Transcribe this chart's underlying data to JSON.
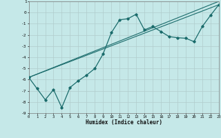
{
  "title": "",
  "xlabel": "Humidex (Indice chaleur)",
  "background_color": "#c5e8e8",
  "grid_color": "#b0cccc",
  "line_color": "#1a6b6b",
  "xlim": [
    0,
    23
  ],
  "ylim": [
    -9,
    1
  ],
  "yticks": [
    1,
    0,
    -1,
    -2,
    -3,
    -4,
    -5,
    -6,
    -7,
    -8,
    -9
  ],
  "xticks": [
    0,
    1,
    2,
    3,
    4,
    5,
    6,
    7,
    8,
    9,
    10,
    11,
    12,
    13,
    14,
    15,
    16,
    17,
    18,
    19,
    20,
    21,
    22,
    23
  ],
  "series1_x": [
    0,
    1,
    2,
    3,
    4,
    5,
    6,
    7,
    8,
    9,
    10,
    11,
    12,
    13,
    14,
    15,
    16,
    17,
    18,
    19,
    20,
    21,
    22,
    23
  ],
  "series1_y": [
    -5.8,
    -6.8,
    -7.8,
    -6.9,
    -8.5,
    -6.7,
    -6.1,
    -5.6,
    -5.0,
    -3.7,
    -1.8,
    -0.65,
    -0.55,
    -0.15,
    -1.55,
    -1.25,
    -1.7,
    -2.15,
    -2.25,
    -2.3,
    -2.6,
    -1.25,
    -0.25,
    0.7
  ],
  "line1_x": [
    0,
    23
  ],
  "line1_y": [
    -5.8,
    0.7
  ],
  "line2_x": [
    0,
    23
  ],
  "line2_y": [
    -5.8,
    1.0
  ]
}
